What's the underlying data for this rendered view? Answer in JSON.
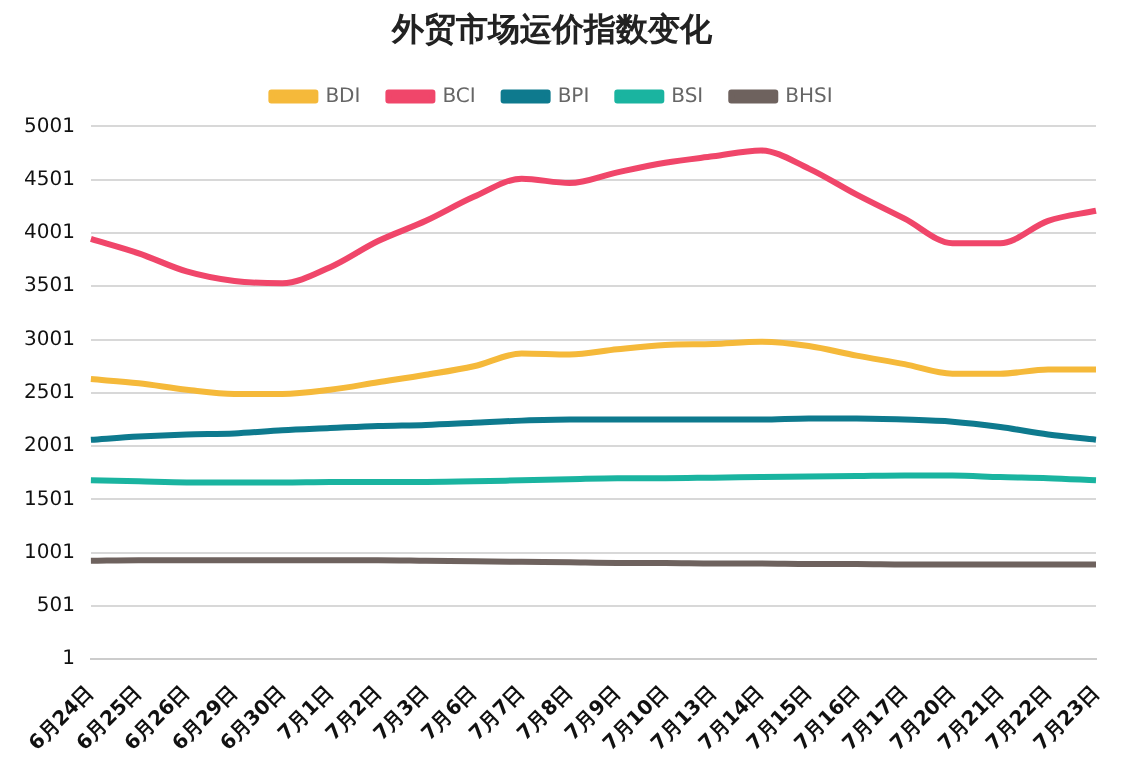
{
  "chart_data": {
    "type": "line",
    "title": "外贸市场运价指数变化",
    "categories": [
      "6月24日",
      "6月25日",
      "6月26日",
      "6月29日",
      "6月30日",
      "7月1日",
      "7月2日",
      "7月3日",
      "7月6日",
      "7月7日",
      "7月8日",
      "7月9日",
      "7月10日",
      "7月13日",
      "7月14日",
      "7月15日",
      "7月16日",
      "7月17日",
      "7月20日",
      "7月21日",
      "7月22日",
      "7月23日"
    ],
    "series": [
      {
        "name": "BDI",
        "color": "#f5b93a",
        "values": [
          2630,
          2590,
          2530,
          2490,
          2490,
          2530,
          2600,
          2670,
          2750,
          2870,
          2860,
          2910,
          2950,
          2960,
          2980,
          2940,
          2850,
          2770,
          2680,
          2680,
          2720,
          2720
        ]
      },
      {
        "name": "BCI",
        "color": "#f0466a",
        "values": [
          3945,
          3810,
          3640,
          3550,
          3530,
          3680,
          3925,
          4115,
          4340,
          4510,
          4470,
          4570,
          4660,
          4720,
          4775,
          4605,
          4360,
          4135,
          3905,
          3905,
          4115,
          4210
        ]
      },
      {
        "name": "BPI",
        "color": "#0e7a8e",
        "values": [
          2060,
          2090,
          2110,
          2120,
          2150,
          2170,
          2190,
          2200,
          2220,
          2240,
          2250,
          2250,
          2250,
          2250,
          2250,
          2260,
          2260,
          2250,
          2230,
          2180,
          2110,
          2060
        ]
      },
      {
        "name": "BSI",
        "color": "#1ab4a0",
        "values": [
          1680,
          1670,
          1660,
          1660,
          1660,
          1665,
          1665,
          1665,
          1670,
          1680,
          1690,
          1700,
          1700,
          1705,
          1710,
          1715,
          1720,
          1725,
          1725,
          1710,
          1700,
          1680
        ]
      },
      {
        "name": "BHSI",
        "color": "#6e625e",
        "values": [
          925,
          930,
          930,
          930,
          930,
          930,
          930,
          925,
          920,
          915,
          910,
          905,
          905,
          900,
          900,
          895,
          895,
          890,
          890,
          890,
          890,
          890
        ]
      }
    ],
    "ylim": [
      1,
      5001
    ],
    "yticks": [
      1,
      501,
      1001,
      1501,
      2001,
      2501,
      3001,
      3501,
      4001,
      4501,
      5001
    ],
    "grid": "y",
    "legend": "top",
    "marker": "none",
    "line_style": "solid"
  }
}
